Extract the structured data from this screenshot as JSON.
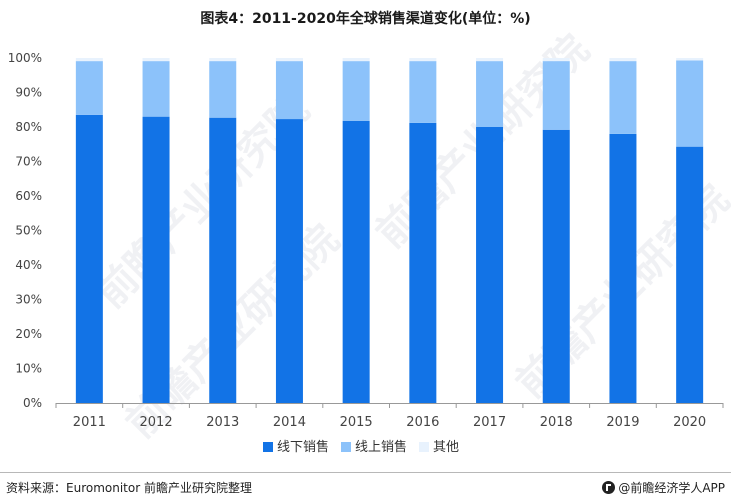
{
  "header": {
    "title": "图表4：2011-2020年全球销售渠道变化(单位：%)"
  },
  "footer": {
    "source": "资料来源：Euromonitor 前瞻产业研究院整理",
    "brand": "@前瞻经济学人APP"
  },
  "watermark": {
    "text": "前瞻产业研究院"
  },
  "chart_data": {
    "type": "bar",
    "stacked": true,
    "title": "图表4：2011-2020年全球销售渠道变化(单位：%)",
    "categories": [
      "2011",
      "2012",
      "2013",
      "2014",
      "2015",
      "2016",
      "2017",
      "2018",
      "2019",
      "2020"
    ],
    "series": [
      {
        "name": "线下销售",
        "color": "#1273e6",
        "values": [
          83.5,
          83.0,
          82.7,
          82.3,
          81.8,
          81.2,
          80.0,
          79.2,
          78.0,
          74.3
        ]
      },
      {
        "name": "线上销售",
        "color": "#8cc2fa",
        "values": [
          15.6,
          16.1,
          16.4,
          16.8,
          17.3,
          17.9,
          19.1,
          19.9,
          21.1,
          25.0
        ]
      },
      {
        "name": "其他",
        "color": "#e8f2fd",
        "values": [
          0.9,
          0.9,
          0.9,
          0.9,
          0.9,
          0.9,
          0.9,
          0.9,
          0.9,
          0.7
        ]
      }
    ],
    "y_ticks": [
      "0%",
      "10%",
      "20%",
      "30%",
      "40%",
      "50%",
      "60%",
      "70%",
      "80%",
      "90%",
      "100%"
    ],
    "ylim": [
      0,
      100
    ],
    "xlabel": "",
    "ylabel": "",
    "legend_position": "bottom-center"
  }
}
